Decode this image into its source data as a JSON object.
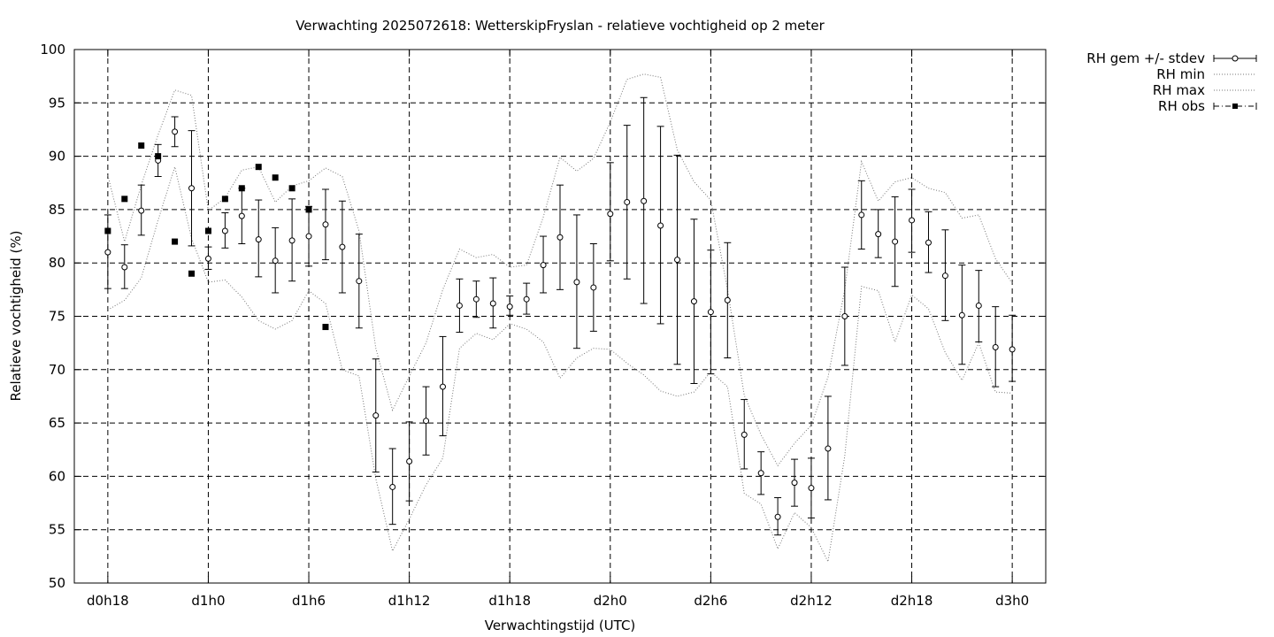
{
  "chart_data": {
    "type": "line",
    "title": "Verwachting 2025072618: WetterskipFryslan - relatieve vochtigheid op 2 meter",
    "xlabel": "Verwachtingstijd (UTC)",
    "ylabel": "Relatieve vochtigheid (%)",
    "ylim": [
      50,
      100
    ],
    "yticks": [
      "50",
      "55",
      "60",
      "65",
      "70",
      "75",
      "80",
      "85",
      "90",
      "95",
      "100"
    ],
    "xlim_hours": [
      -2,
      56
    ],
    "xticks": [
      {
        "label": "d0h18",
        "hour": 0
      },
      {
        "label": "d1h0",
        "hour": 6
      },
      {
        "label": "d1h6",
        "hour": 12
      },
      {
        "label": "d1h12",
        "hour": 18
      },
      {
        "label": "d1h18",
        "hour": 24
      },
      {
        "label": "d2h0",
        "hour": 30
      },
      {
        "label": "d2h6",
        "hour": 36
      },
      {
        "label": "d2h12",
        "hour": 42
      },
      {
        "label": "d2h18",
        "hour": 48
      },
      {
        "label": "d3h0",
        "hour": 54
      }
    ],
    "grid": true,
    "legend_position": "outside-top-right",
    "series": [
      {
        "name": "RH gem +/- stdev",
        "style": "errorbars",
        "x": [
          0,
          1,
          2,
          3,
          4,
          5,
          6,
          7,
          8,
          9,
          10,
          11,
          12,
          13,
          14,
          15,
          16,
          17,
          18,
          19,
          20,
          21,
          22,
          23,
          24,
          25,
          26,
          27,
          28,
          29,
          30,
          31,
          32,
          33,
          34,
          35,
          36,
          37,
          38,
          39,
          40,
          41,
          42,
          43,
          44,
          45,
          46,
          47,
          48,
          49,
          50,
          51,
          52,
          53,
          54
        ],
        "y": [
          81.0,
          79.6,
          84.9,
          89.6,
          92.3,
          87.0,
          80.4,
          83.0,
          84.4,
          82.2,
          80.2,
          82.1,
          82.5,
          83.6,
          81.5,
          78.3,
          65.7,
          59.0,
          61.4,
          65.2,
          68.4,
          76.0,
          76.6,
          76.2,
          75.9,
          76.6,
          79.8,
          82.4,
          78.2,
          77.7,
          84.6,
          85.7,
          85.8,
          83.5,
          80.3,
          76.4,
          75.4,
          76.5,
          63.9,
          60.3,
          56.2,
          59.4,
          58.9,
          62.6,
          75.0,
          84.5,
          82.7,
          82.0,
          84.0,
          81.9,
          78.8,
          75.1,
          76.0,
          72.1,
          71.9
        ],
        "ylow": [
          77.6,
          77.6,
          82.6,
          88.1,
          90.9,
          81.6,
          79.4,
          81.4,
          81.8,
          78.7,
          77.2,
          78.3,
          79.7,
          80.3,
          77.2,
          73.9,
          60.4,
          55.5,
          57.7,
          62.0,
          63.8,
          73.5,
          74.9,
          73.9,
          75.1,
          75.2,
          77.2,
          77.5,
          72.0,
          73.6,
          80.2,
          78.5,
          76.2,
          74.3,
          70.5,
          68.7,
          69.6,
          71.1,
          60.7,
          58.3,
          54.5,
          57.2,
          56.1,
          57.8,
          70.4,
          81.3,
          80.5,
          77.8,
          81.0,
          79.1,
          74.6,
          70.5,
          72.6,
          68.4,
          68.9
        ],
        "yhigh": [
          84.5,
          81.7,
          87.3,
          91.1,
          93.7,
          92.4,
          81.5,
          84.7,
          87.0,
          85.9,
          83.3,
          86.0,
          85.3,
          86.9,
          85.8,
          82.7,
          71.0,
          62.6,
          65.1,
          68.4,
          73.1,
          78.5,
          78.3,
          78.6,
          76.9,
          78.1,
          82.5,
          87.3,
          84.5,
          81.8,
          89.4,
          92.9,
          95.5,
          92.8,
          90.1,
          84.1,
          81.2,
          81.9,
          67.2,
          62.3,
          58.0,
          61.6,
          61.7,
          67.5,
          79.6,
          87.7,
          85.0,
          86.2,
          86.9,
          84.8,
          83.1,
          79.8,
          79.3,
          75.9,
          75.1
        ]
      },
      {
        "name": "RH min",
        "style": "dotted",
        "x": [
          0,
          1,
          2,
          3,
          4,
          5,
          6,
          7,
          8,
          9,
          10,
          11,
          12,
          13,
          14,
          15,
          16,
          17,
          18,
          19,
          20,
          21,
          22,
          23,
          24,
          25,
          26,
          27,
          28,
          29,
          30,
          31,
          32,
          33,
          34,
          35,
          36,
          37,
          38,
          39,
          40,
          41,
          42,
          43,
          44,
          45,
          46,
          47,
          48,
          49,
          50,
          51,
          52,
          53,
          54
        ],
        "y": [
          75.6,
          76.5,
          78.6,
          84.0,
          89.0,
          82.3,
          78.2,
          78.4,
          76.8,
          74.6,
          73.8,
          74.6,
          77.4,
          76.2,
          70.0,
          69.4,
          59.8,
          53.0,
          56.0,
          59.2,
          61.7,
          72.0,
          73.4,
          72.8,
          74.3,
          73.8,
          72.6,
          69.2,
          71.1,
          72.0,
          71.9,
          70.6,
          69.5,
          68.0,
          67.5,
          67.9,
          69.8,
          68.4,
          58.4,
          57.4,
          53.2,
          56.6,
          55.2,
          52.0,
          61.9,
          77.8,
          77.4,
          72.6,
          77.0,
          75.7,
          71.6,
          69.0,
          72.5,
          67.9,
          67.8
        ]
      },
      {
        "name": "RH max",
        "style": "dotted",
        "x": [
          0,
          1,
          2,
          3,
          4,
          5,
          6,
          7,
          8,
          9,
          10,
          11,
          12,
          13,
          14,
          15,
          16,
          17,
          18,
          19,
          20,
          21,
          22,
          23,
          24,
          25,
          26,
          27,
          28,
          29,
          30,
          31,
          32,
          33,
          34,
          35,
          36,
          37,
          38,
          39,
          40,
          41,
          42,
          43,
          44,
          45,
          46,
          47,
          48,
          49,
          50,
          51,
          52,
          53,
          54
        ],
        "y": [
          88.2,
          82.0,
          87.3,
          92.0,
          96.2,
          95.7,
          84.9,
          86.1,
          88.7,
          89.0,
          85.7,
          87.2,
          87.7,
          88.9,
          88.1,
          83.0,
          72.0,
          66.2,
          69.4,
          72.5,
          77.5,
          81.3,
          80.5,
          80.8,
          79.6,
          79.8,
          84.3,
          89.9,
          88.6,
          89.8,
          93.2,
          97.2,
          97.7,
          97.4,
          90.6,
          87.6,
          85.9,
          77.5,
          67.6,
          63.9,
          61.0,
          63.1,
          64.8,
          69.3,
          77.5,
          89.5,
          85.8,
          87.6,
          88.0,
          87.0,
          86.6,
          84.2,
          84.5,
          80.4,
          78.1
        ]
      },
      {
        "name": "RH obs",
        "style": "points",
        "x": [
          0,
          1,
          2,
          3,
          4,
          5,
          6,
          7,
          8,
          9,
          10,
          11,
          12,
          13
        ],
        "y": [
          83,
          86,
          91,
          90,
          82,
          79,
          83,
          86,
          87,
          89,
          88,
          87,
          85,
          74
        ]
      }
    ]
  }
}
